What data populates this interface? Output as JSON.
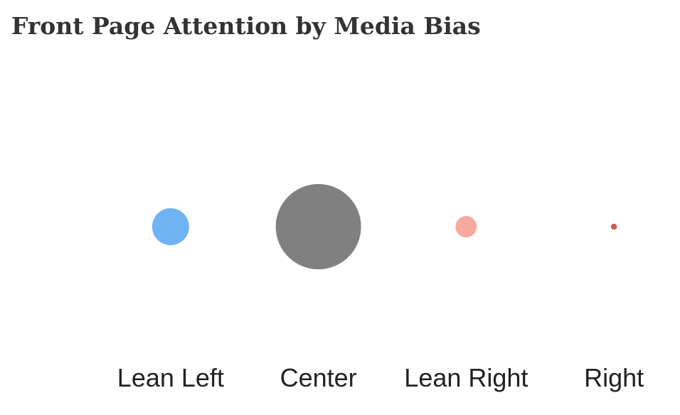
{
  "chart_data": {
    "type": "bubble",
    "title": "Front Page Attention by Media Bias",
    "categories": [
      "Lean Left",
      "Center",
      "Lean Right",
      "Right"
    ],
    "values": [
      15,
      80,
      5,
      0.4
    ],
    "colors": [
      "#6fb3f5",
      "#808080",
      "#f6a99f",
      "#cf5a55"
    ]
  }
}
